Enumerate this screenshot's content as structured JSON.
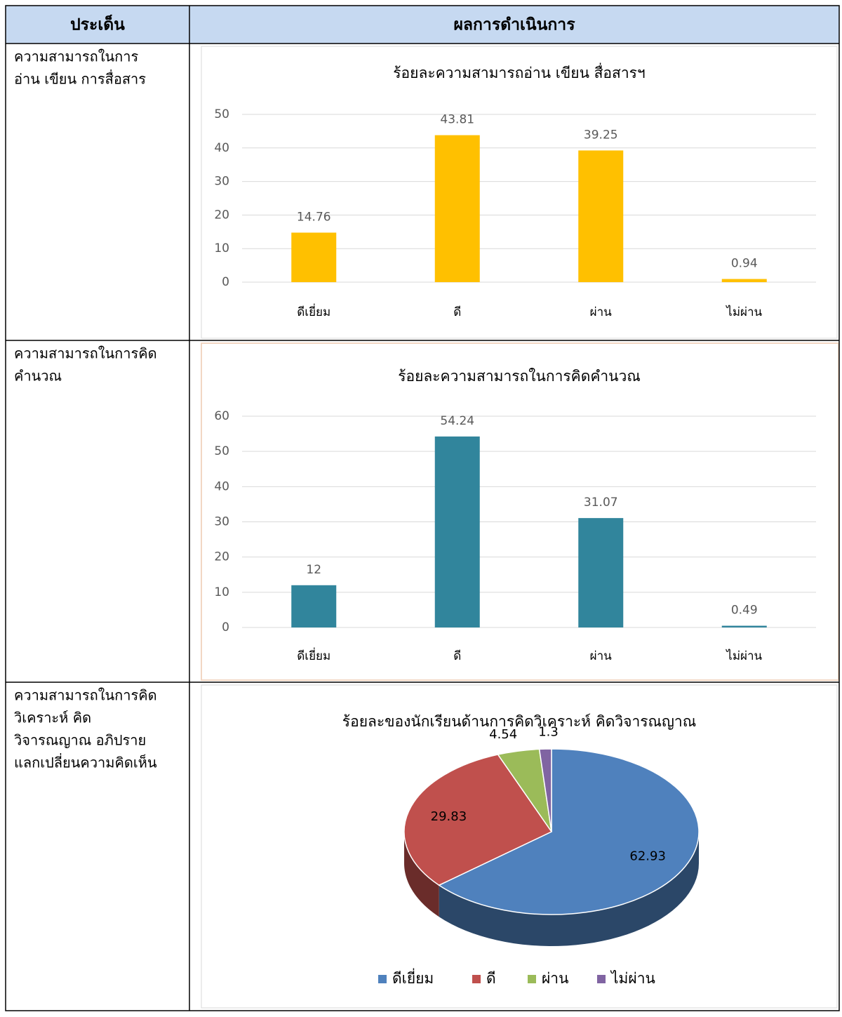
{
  "table": {
    "headers": [
      "ประเด็น",
      "ผลการดำเนินการ"
    ],
    "rows": [
      {
        "topic": [
          "ความสามารถในการ",
          "อ่าน เขียน การสื่อสาร"
        ]
      },
      {
        "topic": [
          "ความสามารถในการคิด",
          "คำนวณ"
        ]
      },
      {
        "topic": [
          "ความสามารถในการคิด",
          "วิเคราะห์ คิด",
          "วิจารณญาณ อภิปราย",
          "แลกเปลี่ยนความคิดเห็น"
        ]
      }
    ]
  },
  "chart_data": [
    {
      "type": "bar",
      "title": "ร้อยละความสามารถอ่าน เขียน สื่อสารฯ",
      "categories": [
        "ดีเยี่ยม",
        "ดี",
        "ผ่าน",
        "ไม่ผ่าน"
      ],
      "values": [
        14.76,
        43.81,
        39.25,
        0.94
      ],
      "color": "#ffc000",
      "ylim": [
        0,
        50
      ],
      "yticks": [
        0,
        10,
        20,
        30,
        40,
        50
      ],
      "grid": true
    },
    {
      "type": "bar",
      "title": "ร้อยละความสามารถในการคิดคำนวณ",
      "categories": [
        "ดีเยี่ยม",
        "ดี",
        "ผ่าน",
        "ไม่ผ่าน"
      ],
      "values": [
        12,
        54.24,
        31.07,
        0.49
      ],
      "color": "#31859c",
      "ylim": [
        0,
        60
      ],
      "yticks": [
        0,
        10,
        20,
        30,
        40,
        50,
        60
      ],
      "grid": true
    },
    {
      "type": "pie",
      "title": "ร้อยละของนักเรียนด้านการคิดวิเคราะห์ คิดวิจารณญาณ",
      "categories": [
        "ดีเยี่ยม",
        "ดี",
        "ผ่าน",
        "ไม่ผ่าน"
      ],
      "values": [
        62.93,
        29.83,
        4.54,
        1.3
      ],
      "colors": [
        "#4f81bd",
        "#c0504d",
        "#9bbb59",
        "#8064a2"
      ],
      "legend": "bottom"
    }
  ]
}
